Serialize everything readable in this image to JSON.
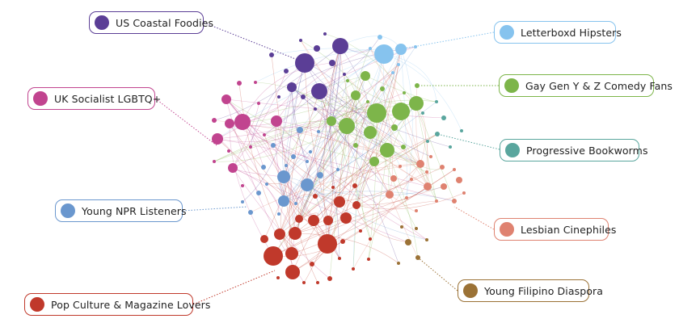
{
  "communities": [
    {
      "key": "us-coastal-foodies",
      "label": "US Coastal Foodies",
      "color": "#5B3E96"
    },
    {
      "key": "letterboxd-hipsters",
      "label": "Letterboxd Hipsters",
      "color": "#86C3EE"
    },
    {
      "key": "uk-socialist-lgbtq",
      "label": "UK Socialist LGBTQ+",
      "color": "#C1448F"
    },
    {
      "key": "gay-gen-yz-comedy",
      "label": "Gay Gen Y & Z Comedy Fans",
      "color": "#7DB54A"
    },
    {
      "key": "progressive-bookworms",
      "label": "Progressive Bookworms",
      "color": "#5AA69E"
    },
    {
      "key": "young-npr-listeners",
      "label": "Young NPR Listeners",
      "color": "#6A97CE"
    },
    {
      "key": "lesbian-cinephiles",
      "label": "Lesbian Cinephiles",
      "color": "#DF8270"
    },
    {
      "key": "pop-culture-magazine",
      "label": "Pop Culture & Magazine Lovers",
      "color": "#C0392B"
    },
    {
      "key": "young-filipino-diaspora",
      "label": "Young Filipino Diaspora",
      "color": "#9B7236"
    }
  ]
}
